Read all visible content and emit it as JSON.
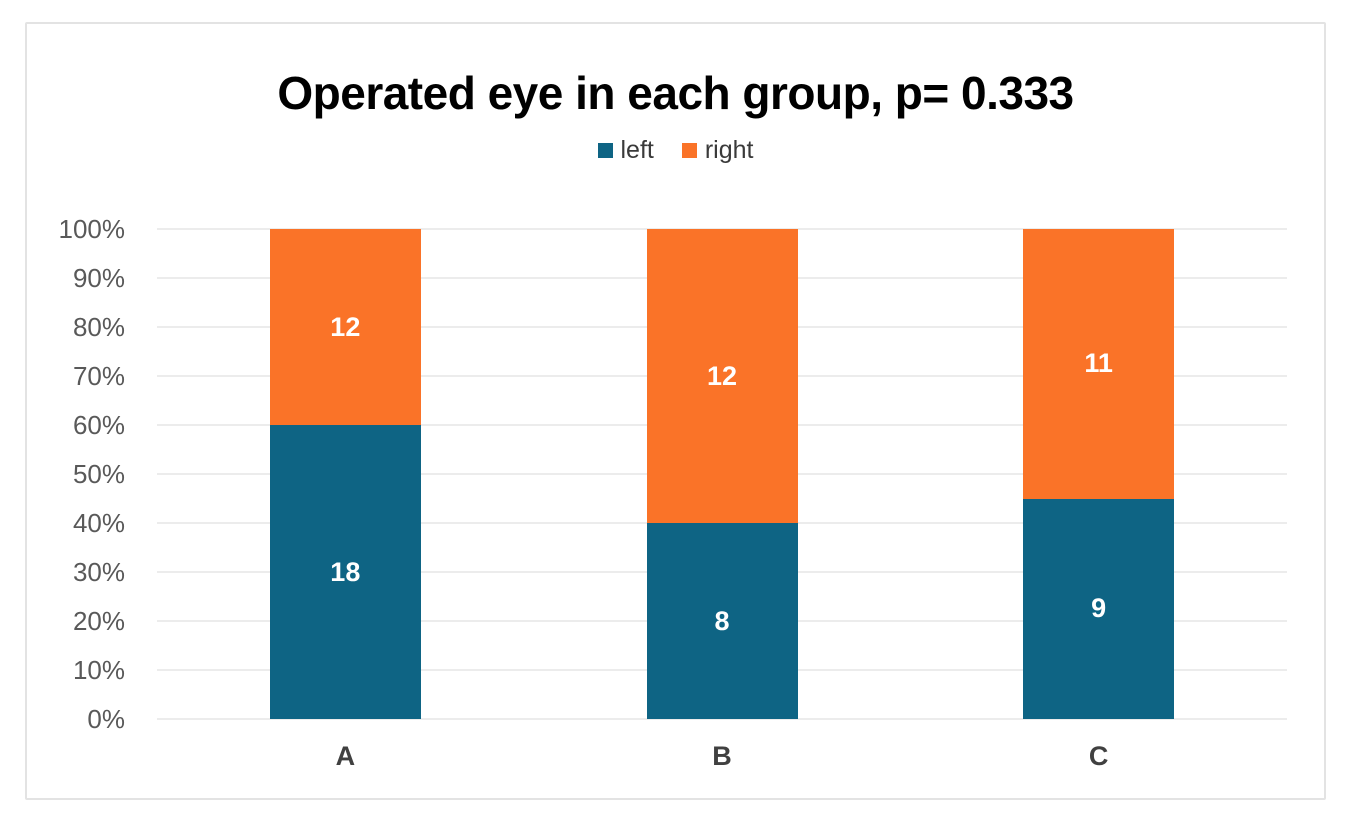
{
  "chart_data": {
    "type": "bar",
    "stacking": "percent",
    "title": "Operated eye in each group, p= 0.333",
    "categories": [
      "A",
      "B",
      "C"
    ],
    "series": [
      {
        "name": "left",
        "color": "#0E6484",
        "values": [
          18,
          8,
          9
        ]
      },
      {
        "name": "right",
        "color": "#FA7328",
        "values": [
          12,
          12,
          11
        ]
      }
    ],
    "y_axis": {
      "min": 0,
      "max": 1,
      "format": "percent",
      "tick_labels": [
        "0%",
        "10%",
        "20%",
        "30%",
        "40%",
        "50%",
        "60%",
        "70%",
        "80%",
        "90%",
        "100%"
      ]
    },
    "legend": {
      "position": "top",
      "entries": [
        "left",
        "right"
      ]
    },
    "grid": true,
    "colors": {
      "gridline": "#D9D9D9",
      "frame_border": "#E3E3E3",
      "axis_text": "#595959",
      "category_text": "#404040",
      "data_label": "#FFFFFF",
      "title_text": "#000000",
      "background": "#FFFFFF"
    }
  }
}
